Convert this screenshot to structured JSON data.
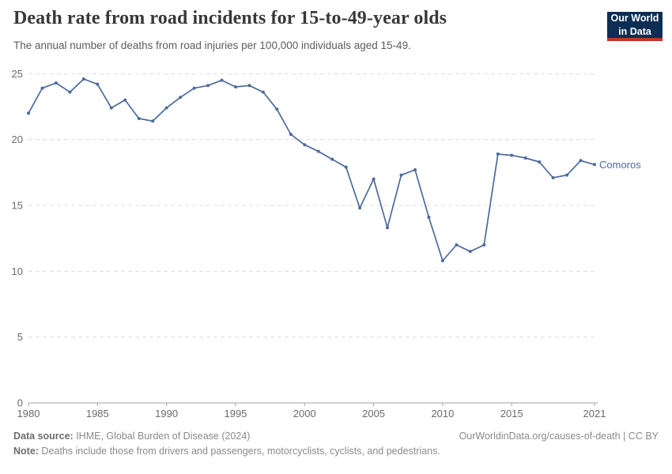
{
  "header": {
    "title": "Death rate from road incidents for 15-to-49-year olds",
    "subtitle": "The annual number of deaths from road injuries per 100,000 individuals aged 15-49.",
    "logo": {
      "line1": "Our World",
      "line2": "in Data",
      "bg_color": "#0d2e54",
      "accent_color": "#c0352c"
    }
  },
  "chart_data": {
    "type": "line",
    "title": "Death rate from road incidents for 15-to-49-year olds",
    "x": [
      1980,
      1981,
      1982,
      1983,
      1984,
      1985,
      1986,
      1987,
      1988,
      1989,
      1990,
      1991,
      1992,
      1993,
      1994,
      1995,
      1996,
      1997,
      1998,
      1999,
      2000,
      2001,
      2002,
      2003,
      2004,
      2005,
      2006,
      2007,
      2008,
      2009,
      2010,
      2011,
      2012,
      2013,
      2014,
      2015,
      2016,
      2017,
      2018,
      2019,
      2020,
      2021
    ],
    "series": [
      {
        "name": "Comoros",
        "color": "#4c6a9c",
        "values": [
          22.0,
          23.9,
          24.3,
          23.6,
          24.6,
          24.2,
          22.4,
          23.0,
          21.6,
          21.4,
          22.4,
          23.2,
          23.9,
          24.1,
          24.5,
          24.0,
          24.1,
          23.6,
          22.3,
          20.4,
          19.6,
          19.1,
          18.5,
          17.9,
          14.8,
          17.0,
          13.3,
          17.3,
          17.7,
          14.1,
          10.8,
          12.0,
          11.5,
          12.0,
          18.9,
          18.8,
          18.6,
          18.3,
          17.1,
          17.3,
          18.4,
          18.1
        ]
      }
    ],
    "x_ticks": [
      1980,
      1985,
      1990,
      1995,
      2000,
      2005,
      2010,
      2015,
      2021
    ],
    "y_ticks": [
      0,
      5,
      10,
      15,
      20,
      25
    ],
    "xlim": [
      1980,
      2021
    ],
    "ylim": [
      0,
      25
    ],
    "grid": "horizontal-dashed",
    "grid_color": "#dcdcdc",
    "axis_color": "#a1a1a1",
    "tick_label_color": "#6b6b6b",
    "legend": "line-end-label"
  },
  "footer": {
    "source_label": "Data source:",
    "source_text": " IHME, Global Burden of Disease (2024)",
    "url_text": "OurWorldinData.org/causes-of-death | CC BY",
    "note_label": "Note:",
    "note_text": " Deaths include those from drivers and passengers, motorcyclists, cyclists, and pedestrians."
  }
}
